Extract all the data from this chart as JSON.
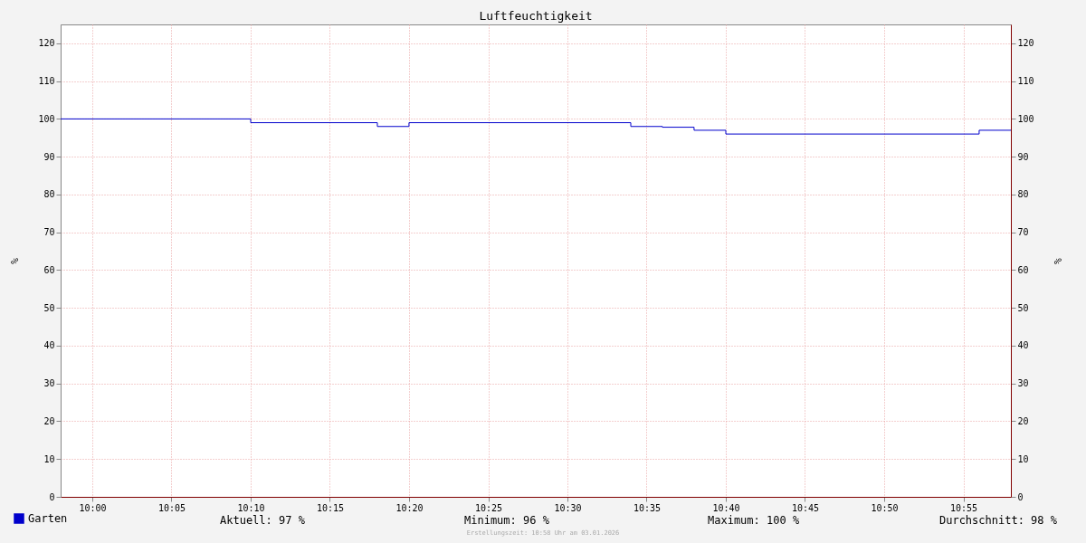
{
  "chart_data": {
    "type": "step",
    "title": "Luftfeuchtigkeit",
    "ylabel": "%",
    "y2label": "%",
    "x": [
      9.9667,
      10.1667,
      10.3,
      10.3333,
      10.5667,
      10.6,
      10.6333,
      10.6667,
      10.9333,
      10.9667
    ],
    "series": [
      {
        "name": "Garten",
        "color": "#0000cc",
        "values": [
          100,
          99,
          98,
          99,
          98,
          97.8,
          97,
          96,
          97,
          97
        ]
      }
    ],
    "xlim": [
      9.9667,
      10.9667
    ],
    "xticks": [
      {
        "value": 10.0,
        "label": "10:00"
      },
      {
        "value": 10.0833,
        "label": "10:05"
      },
      {
        "value": 10.1667,
        "label": "10:10"
      },
      {
        "value": 10.25,
        "label": "10:15"
      },
      {
        "value": 10.3333,
        "label": "10:20"
      },
      {
        "value": 10.4167,
        "label": "10:25"
      },
      {
        "value": 10.5,
        "label": "10:30"
      },
      {
        "value": 10.5833,
        "label": "10:35"
      },
      {
        "value": 10.6667,
        "label": "10:40"
      },
      {
        "value": 10.75,
        "label": "10:45"
      },
      {
        "value": 10.8333,
        "label": "10:50"
      },
      {
        "value": 10.9167,
        "label": "10:55"
      }
    ],
    "ylim": [
      0,
      125
    ],
    "yticks": [
      0,
      10,
      20,
      30,
      40,
      50,
      60,
      70,
      80,
      90,
      100,
      110,
      120
    ],
    "y2lim": [
      0,
      125
    ],
    "y2ticks": [
      0,
      10,
      20,
      30,
      40,
      50,
      60,
      70,
      80,
      90,
      100,
      110,
      120
    ],
    "grid": true,
    "legend": "bottom left",
    "line_style": "solid",
    "annotations": [
      "Aktuell:  97 %",
      "Minimum:  96 %",
      "Maximum: 100 %",
      "Durchschnitt:  98 %",
      "Erstellungszeit: 10:58 Uhr am 03.01.2026"
    ]
  }
}
